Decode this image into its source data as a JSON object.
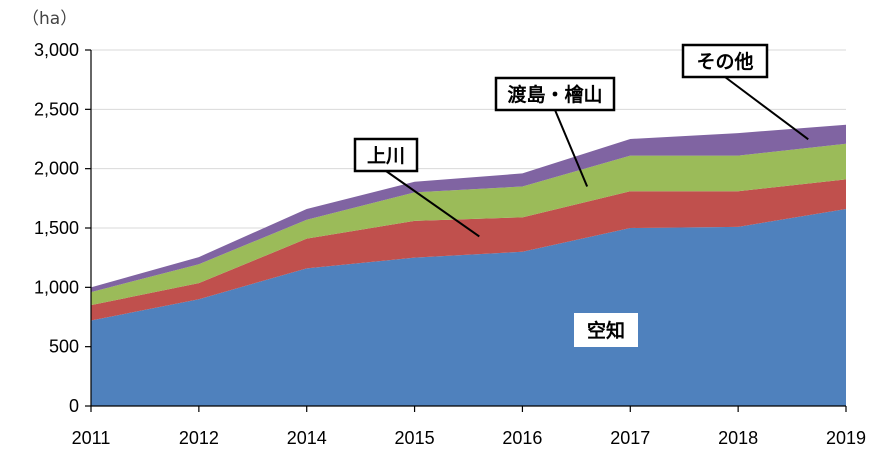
{
  "chart_data": {
    "type": "area",
    "stacked": true,
    "x": [
      "2011",
      "2012",
      "2014",
      "2015",
      "2016",
      "2017",
      "2018",
      "2019"
    ],
    "ylim": [
      0,
      3000
    ],
    "yticks": [
      0,
      500,
      1000,
      1500,
      2000,
      2500,
      3000
    ],
    "ytick_labels": [
      "0",
      "500",
      "1,000",
      "1,500",
      "2,000",
      "2,500",
      "3,000"
    ],
    "unit_label": "（ha）",
    "grid": true,
    "series": [
      {
        "name": "空知",
        "color": "#4f81bd",
        "values": [
          720,
          900,
          1160,
          1250,
          1300,
          1500,
          1510,
          1660
        ]
      },
      {
        "name": "上川",
        "color": "#c0504d",
        "values": [
          130,
          135,
          250,
          310,
          290,
          310,
          300,
          250
        ]
      },
      {
        "name": "渡島・檜山",
        "color": "#9bbb59",
        "values": [
          110,
          160,
          160,
          240,
          260,
          300,
          300,
          300
        ]
      },
      {
        "name": "その他",
        "color": "#8064a2",
        "values": [
          40,
          60,
          90,
          90,
          110,
          140,
          190,
          160
        ]
      }
    ],
    "annotations": [
      {
        "series": "空知",
        "text": "空知",
        "boxed": false
      },
      {
        "series": "上川",
        "text": "上川",
        "boxed": true
      },
      {
        "series": "渡島・檜山",
        "text": "渡島・檜山",
        "boxed": true
      },
      {
        "series": "その他",
        "text": "その他",
        "boxed": true
      }
    ]
  }
}
